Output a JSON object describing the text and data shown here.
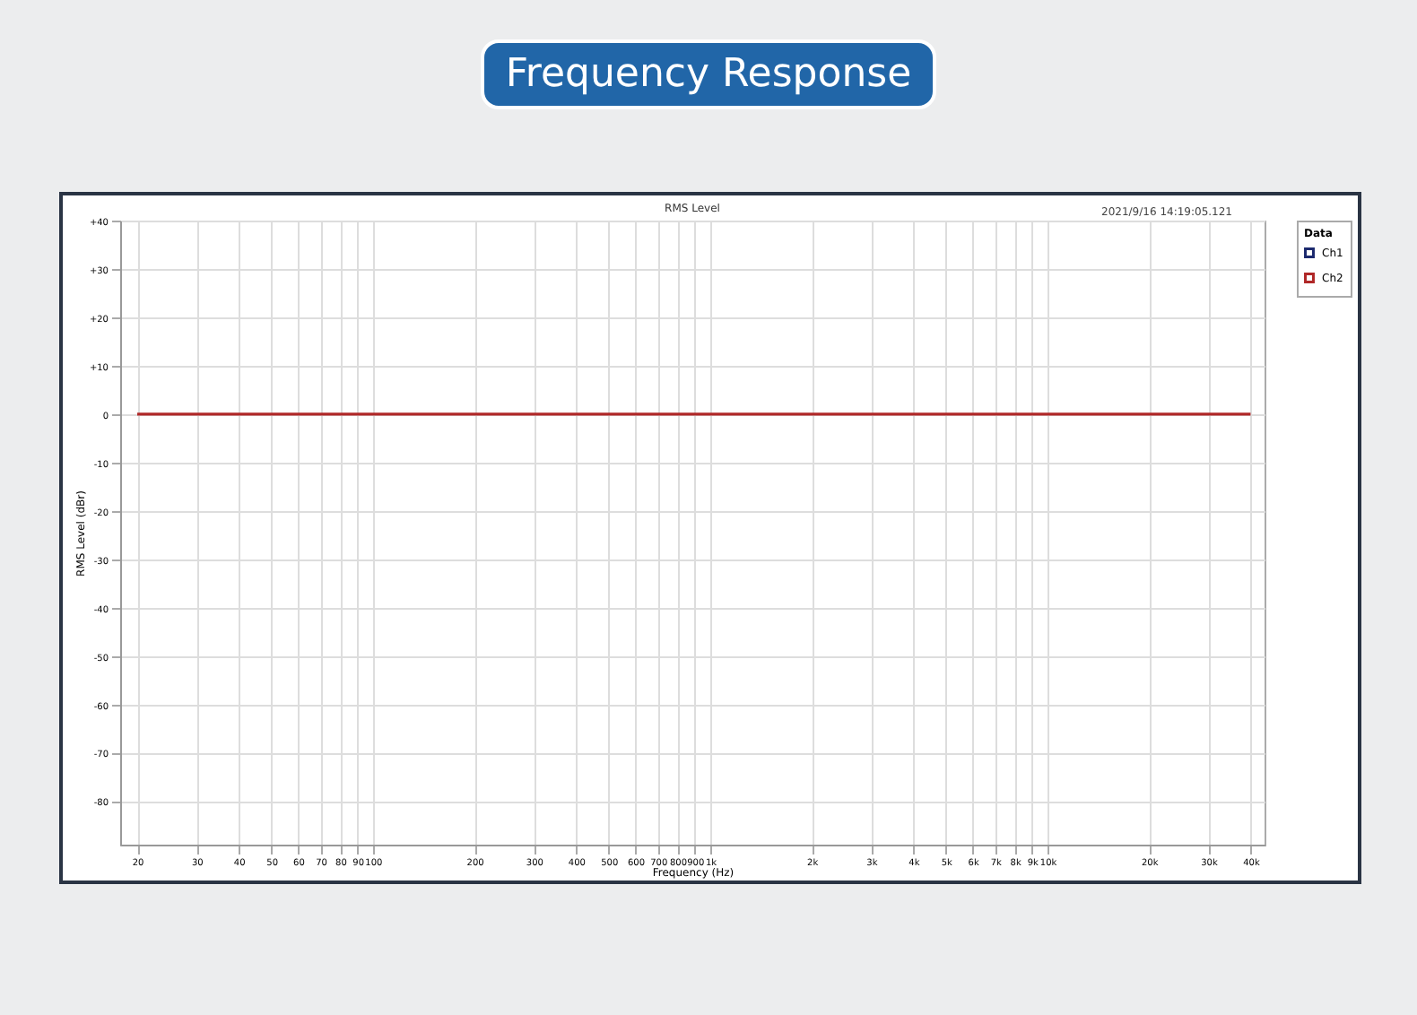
{
  "chart_data": {
    "type": "line",
    "title": "Frequency Response",
    "subtitle": "RMS Level",
    "xlabel": "Frequency (Hz)",
    "ylabel": "RMS Level (dBr)",
    "legend_title": "Data",
    "annotations": [
      "2021/9/16 14:19:05.121"
    ],
    "x": [
      20,
      40000
    ],
    "series": [
      {
        "name": "Ch1",
        "color": "#1c2a6e",
        "values": [
          null,
          null
        ]
      },
      {
        "name": "Ch2",
        "color": "#b02828",
        "values": [
          0,
          0
        ]
      }
    ],
    "log": "x",
    "xlim": [
      17.8,
      44000
    ],
    "ylim": [
      -89,
      40
    ],
    "xticks": [
      20,
      30,
      40,
      50,
      60,
      70,
      80,
      90,
      100,
      200,
      300,
      400,
      500,
      600,
      700,
      800,
      900,
      {
        "value": 1000,
        "label": "1k"
      },
      {
        "value": 2000,
        "label": "2k"
      },
      {
        "value": 3000,
        "label": "3k"
      },
      {
        "value": 4000,
        "label": "4k"
      },
      {
        "value": 5000,
        "label": "5k"
      },
      {
        "value": 6000,
        "label": "6k"
      },
      {
        "value": 7000,
        "label": "7k"
      },
      {
        "value": 8000,
        "label": "8k"
      },
      {
        "value": 9000,
        "label": "9k"
      },
      {
        "value": 10000,
        "label": "10k"
      },
      {
        "value": 20000,
        "label": "20k"
      },
      {
        "value": 30000,
        "label": "30k"
      },
      {
        "value": 40000,
        "label": "40k"
      }
    ],
    "yticks": [
      {
        "value": 40,
        "label": "+40"
      },
      {
        "value": 30,
        "label": "+30"
      },
      {
        "value": 20,
        "label": "+20"
      },
      {
        "value": 10,
        "label": "+10"
      },
      0,
      -10,
      -20,
      -30,
      -40,
      -50,
      -60,
      -70,
      -80
    ],
    "grid": true,
    "legend": "top right",
    "marker": "none",
    "line_style": "solid"
  }
}
